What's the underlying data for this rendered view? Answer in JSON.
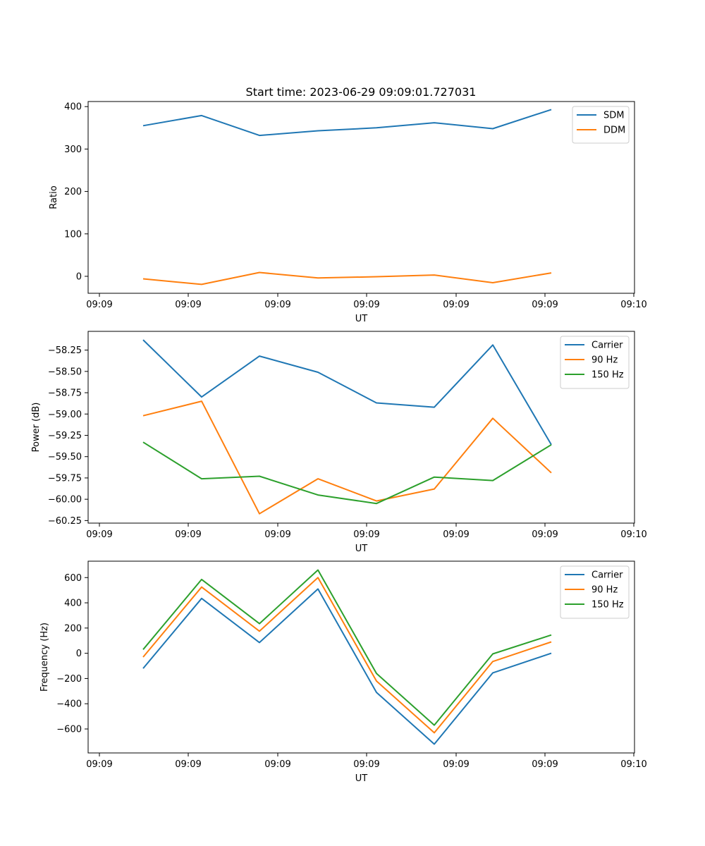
{
  "chart_data": [
    {
      "type": "line",
      "title": "Start time: 2023-06-29 09:09:01.727031",
      "xlabel": "UT",
      "ylabel": "Ratio",
      "x_tick_labels": [
        "09:09",
        "09:09",
        "09:09",
        "09:09",
        "09:09",
        "09:09",
        "09:10"
      ],
      "ylim": [
        -40,
        412
      ],
      "y_ticks": [
        0,
        100,
        200,
        300,
        400
      ],
      "y_tick_labels": [
        "0",
        "100",
        "200",
        "300",
        "400"
      ],
      "legend_position": "top-right",
      "grid": false,
      "series": [
        {
          "name": "SDM",
          "color": "#1f77b4",
          "values": [
            355,
            379,
            332,
            343,
            350,
            362,
            348,
            393
          ]
        },
        {
          "name": "DDM",
          "color": "#ff7f0e",
          "values": [
            -6,
            -19,
            9,
            -4,
            -1,
            3,
            -15,
            8
          ]
        }
      ]
    },
    {
      "type": "line",
      "title": "",
      "xlabel": "UT",
      "ylabel": "Power (dB)",
      "x_tick_labels": [
        "09:09",
        "09:09",
        "09:09",
        "09:09",
        "09:09",
        "09:09",
        "09:10"
      ],
      "ylim": [
        -60.28,
        -58.03
      ],
      "y_ticks": [
        -60.25,
        -60.0,
        -59.75,
        -59.5,
        -59.25,
        -59.0,
        -58.75,
        -58.5,
        -58.25
      ],
      "y_tick_labels": [
        "−60.25",
        "−60.00",
        "−59.75",
        "−59.50",
        "−59.25",
        "−59.00",
        "−58.75",
        "−58.50",
        "−58.25"
      ],
      "legend_position": "top-right",
      "grid": false,
      "series": [
        {
          "name": "Carrier",
          "color": "#1f77b4",
          "values": [
            -58.13,
            -58.8,
            -58.32,
            -58.51,
            -58.87,
            -58.92,
            -58.19,
            -59.36
          ]
        },
        {
          "name": "90 Hz",
          "color": "#ff7f0e",
          "values": [
            -59.02,
            -58.85,
            -60.17,
            -59.76,
            -60.02,
            -59.88,
            -59.05,
            -59.69
          ]
        },
        {
          "name": "150 Hz",
          "color": "#2ca02c",
          "values": [
            -59.33,
            -59.76,
            -59.73,
            -59.95,
            -60.05,
            -59.74,
            -59.78,
            -59.36
          ]
        }
      ]
    },
    {
      "type": "line",
      "title": "",
      "xlabel": "UT",
      "ylabel": "Frequency (Hz)",
      "x_tick_labels": [
        "09:09",
        "09:09",
        "09:09",
        "09:09",
        "09:09",
        "09:09",
        "09:10"
      ],
      "ylim": [
        -790,
        730
      ],
      "y_ticks": [
        -600,
        -400,
        -200,
        0,
        200,
        400,
        600
      ],
      "y_tick_labels": [
        "−600",
        "−400",
        "−200",
        "0",
        "200",
        "400",
        "600"
      ],
      "legend_position": "top-right",
      "grid": false,
      "series": [
        {
          "name": "Carrier",
          "color": "#1f77b4",
          "values": [
            -120,
            435,
            85,
            510,
            -310,
            -720,
            -155,
            0
          ]
        },
        {
          "name": "90 Hz",
          "color": "#ff7f0e",
          "values": [
            -30,
            525,
            175,
            600,
            -220,
            -630,
            -65,
            90
          ]
        },
        {
          "name": "150 Hz",
          "color": "#2ca02c",
          "values": [
            30,
            585,
            235,
            660,
            -160,
            -570,
            -5,
            145
          ]
        }
      ]
    }
  ]
}
